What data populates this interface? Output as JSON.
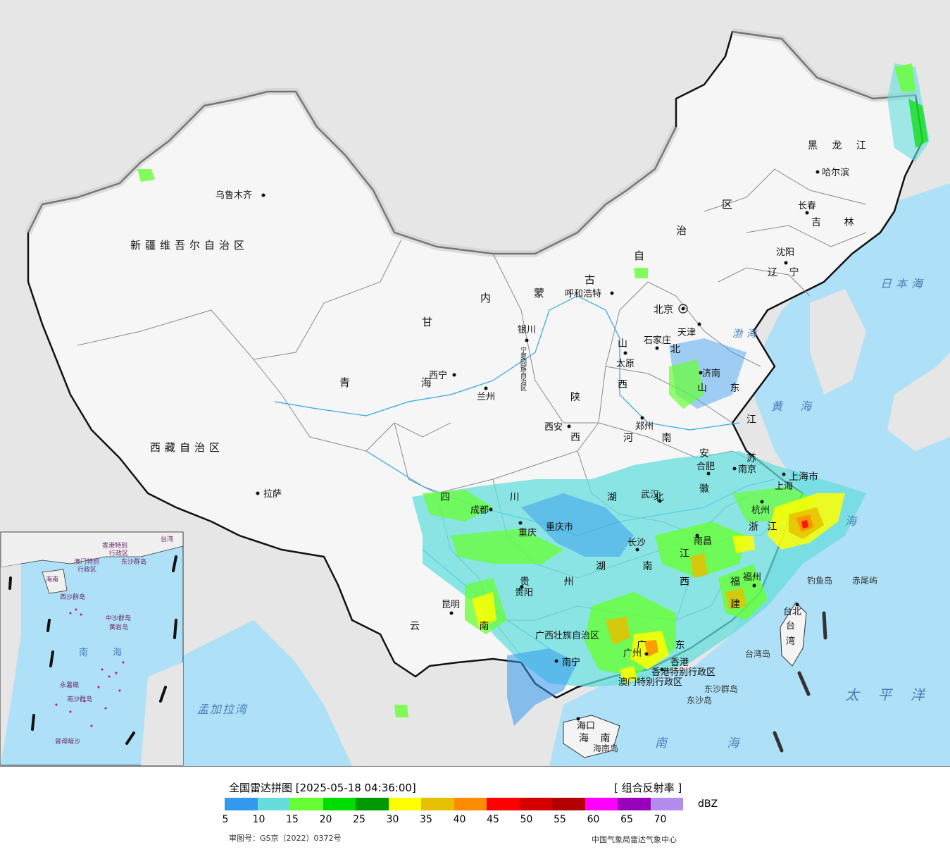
{
  "title": "全国雷达拼图 [2025-05-18 04:36:00]",
  "product": "[ 组合反射率 ]",
  "unit": "dBZ",
  "review_number": "审图号：GS京（2022）0372号",
  "producer": "中国气象局雷达气象中心",
  "legend": {
    "colors": [
      "#3399ee",
      "#66dddd",
      "#66ff33",
      "#00dd00",
      "#009900",
      "#ffff00",
      "#e6c000",
      "#ff8c00",
      "#ff0000",
      "#d60000",
      "#b30000",
      "#ff00ff",
      "#9900bb",
      "#b38cee"
    ],
    "ticks": [
      "5",
      "10",
      "15",
      "20",
      "25",
      "30",
      "35",
      "40",
      "45",
      "50",
      "55",
      "60",
      "65",
      "70"
    ]
  },
  "regions": {
    "xinjiang": "新疆维吾尔自治区",
    "xizang": "西藏自治区",
    "neimenggu": [
      "内",
      "蒙",
      "古",
      "自",
      "治",
      "区"
    ],
    "gansu": "甘",
    "qinghai": "青 海",
    "heilongjiang": "黑 龙 江",
    "jilin": "吉 林",
    "liaoning": "辽 宁",
    "hebei": "北",
    "shanxi": "山 西",
    "shandong": "山 东",
    "henan": "河 南",
    "shaanxi": "陕 西",
    "sichuan": "四 川",
    "hubei": "湖 北",
    "hunan": "湖 南",
    "jiangsu": "江 苏",
    "anhui": "安 徽",
    "zhejiang": "浙 江",
    "jiangxi": "江 西",
    "fujian": "福 建",
    "guizhou": "贵 州",
    "yunnan": "云 南",
    "guangxi": "广西壮族自治区",
    "guangdong": "广 东",
    "hainan": "海 南",
    "chongqing": "重庆市",
    "shanghai": "上海市",
    "taiwan": "台 湾",
    "ningxia": "宁夏回族自治区",
    "beijing": "北京",
    "tianjin": "天津",
    "hongkong": "香港特别行政区",
    "macao": "澳门特别行政区"
  },
  "cities": [
    "乌鲁木齐",
    "拉萨",
    "西宁",
    "兰州",
    "银川",
    "呼和浩特",
    "太原",
    "石家庄",
    "北京",
    "天津",
    "济南",
    "郑州",
    "西安",
    "成都",
    "重庆",
    "武汉",
    "合肥",
    "南京",
    "上海",
    "杭州",
    "南昌",
    "长沙",
    "贵阳",
    "昆明",
    "南宁",
    "广州",
    "福州",
    "台北",
    "海口",
    "哈尔滨",
    "长春",
    "沈阳",
    "香港"
  ],
  "seas": {
    "japan_sea": "日本海",
    "yellow_sea": "黄 海",
    "east_sea": "东 海",
    "bohai": "渤海",
    "pacific": "太 平 洋",
    "south_sea": "南 海",
    "bengal": "孟加拉湾"
  },
  "islands": {
    "diaoyu": "钓鱼岛",
    "chiwei": "赤尾屿",
    "taiwan_island": "台湾岛",
    "hainan_island": "海南岛",
    "dongsha": "东沙群岛",
    "dongsha_island": "东沙岛"
  },
  "inset": {
    "labels": [
      "香港特别",
      "行政区",
      "澳门特别",
      "行政区",
      "东沙群岛",
      "海南",
      "西沙群岛",
      "中沙群岛",
      "黄岩岛",
      "南",
      "海",
      "永暑礁",
      "南沙群岛",
      "曾母暗沙",
      "台湾"
    ]
  }
}
